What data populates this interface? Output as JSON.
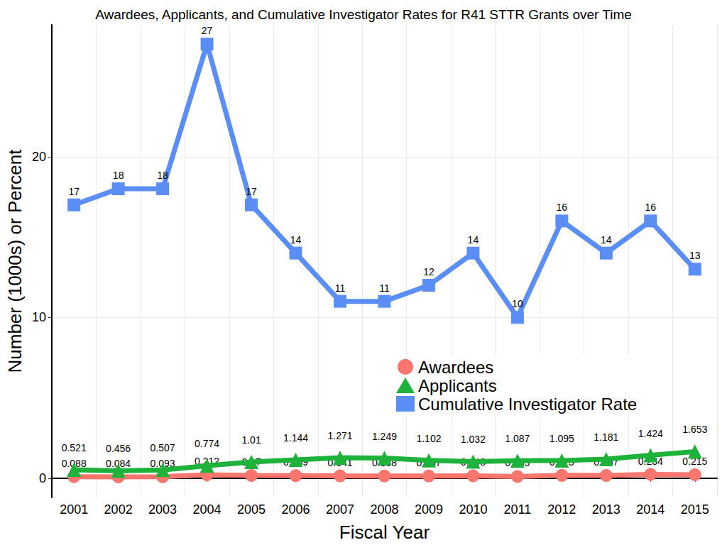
{
  "chart_data": {
    "type": "line",
    "title": "Awardees, Applicants, and Cumulative Investigator Rates for R41 STTR Grants over Time",
    "x_label": "Fiscal Year",
    "y_label": "Number (1000s) or Percent",
    "categories": [
      "2001",
      "2002",
      "2003",
      "2004",
      "2005",
      "2006",
      "2007",
      "2008",
      "2009",
      "2010",
      "2011",
      "2012",
      "2013",
      "2014",
      "2015"
    ],
    "series": [
      {
        "name": "Awardees",
        "color": "#F8766D",
        "marker": "circle",
        "values": [
          0.088,
          0.084,
          0.093,
          0.212,
          0.17,
          0.159,
          0.141,
          0.138,
          0.137,
          0.148,
          0.105,
          0.175,
          0.167,
          0.234,
          0.215
        ]
      },
      {
        "name": "Applicants",
        "color": "#1DB33A",
        "marker": "triangle",
        "values": [
          0.521,
          0.456,
          0.507,
          0.774,
          1.01,
          1.144,
          1.271,
          1.249,
          1.102,
          1.032,
          1.087,
          1.095,
          1.181,
          1.424,
          1.653
        ]
      },
      {
        "name": "Cumulative Investigator Rate",
        "color": "#5A8EF5",
        "marker": "square",
        "values": [
          17,
          18,
          18,
          27,
          17,
          14,
          11,
          11,
          12,
          14,
          10,
          16,
          14,
          16,
          13
        ]
      }
    ],
    "ylim": [
      -1.2,
      28.2
    ],
    "yticks": [
      0,
      10,
      20
    ],
    "grid": true,
    "legend": "right",
    "data_labels": true
  }
}
